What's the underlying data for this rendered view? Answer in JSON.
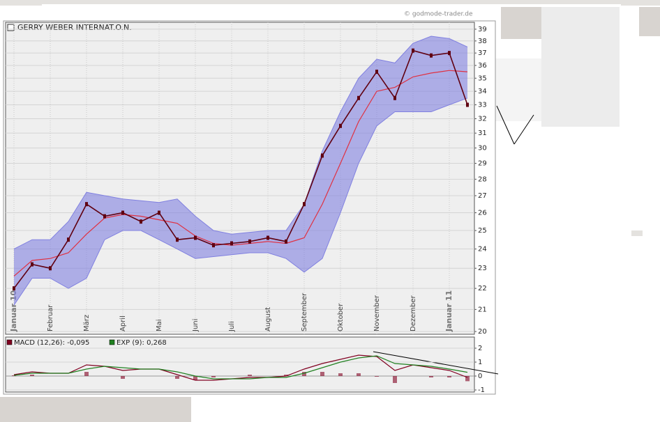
{
  "source": "© godmode-trader.de",
  "chart_data": [
    {
      "type": "line",
      "title": "GERRY WEBER INTERNAT.O.N.",
      "log": true,
      "grid": true,
      "categories": [
        "Januar 10",
        null,
        "Februar",
        null,
        "März",
        null,
        "April",
        null,
        "Mai",
        null,
        "Juni",
        null,
        "Juli",
        null,
        "August",
        null,
        "September",
        null,
        "Oktober",
        null,
        "November",
        null,
        "Dezember",
        null,
        "Januar 11",
        null
      ],
      "close": {
        "color": "#600010",
        "values": [
          22.0,
          23.2,
          23.0,
          24.5,
          26.5,
          25.8,
          26.0,
          25.5,
          26.0,
          24.5,
          24.6,
          24.2,
          24.3,
          24.4,
          24.6,
          24.4,
          26.5,
          29.5,
          31.5,
          33.5,
          35.5,
          33.5,
          37.2,
          36.8,
          37.0,
          33.0
        ]
      },
      "upper_band": {
        "color": "#8080e0",
        "values": [
          24.0,
          24.5,
          24.5,
          25.5,
          27.2,
          27.0,
          26.8,
          26.7,
          26.6,
          26.8,
          25.8,
          25.0,
          24.8,
          24.9,
          25.0,
          25.0,
          26.5,
          29.8,
          32.5,
          35.0,
          36.5,
          36.2,
          37.8,
          38.4,
          38.2,
          37.5
        ]
      },
      "lower_band": {
        "color": "#8080e0",
        "values": [
          21.2,
          22.5,
          22.5,
          22.0,
          22.5,
          24.5,
          25.0,
          25.0,
          24.5,
          24.0,
          23.5,
          23.6,
          23.7,
          23.8,
          23.8,
          23.5,
          22.8,
          23.5,
          26.0,
          29.0,
          31.5,
          32.5,
          32.5,
          32.5,
          33.0,
          33.5
        ]
      },
      "moving_average": {
        "color": "#e03040",
        "values": [
          22.6,
          23.4,
          23.5,
          23.8,
          24.8,
          25.7,
          25.9,
          25.8,
          25.6,
          25.4,
          24.7,
          24.3,
          24.2,
          24.3,
          24.4,
          24.3,
          24.6,
          26.5,
          29.0,
          31.8,
          34.0,
          34.3,
          35.1,
          35.4,
          35.6,
          35.5
        ]
      },
      "ylim": [
        19.88,
        39.6
      ],
      "yticks": [
        20,
        21,
        22,
        23,
        24,
        25,
        26,
        27,
        28,
        29,
        30,
        31,
        32,
        33,
        34,
        35,
        36,
        37,
        38,
        39
      ]
    },
    {
      "type": "line",
      "series": [
        {
          "name": "MACD (12,26): -0,095",
          "color": "#800020",
          "values": [
            0.1,
            0.3,
            0.2,
            0.2,
            0.8,
            0.7,
            0.4,
            0.5,
            0.5,
            0.1,
            -0.3,
            -0.3,
            -0.2,
            -0.1,
            -0.1,
            0.0,
            0.5,
            0.9,
            1.2,
            1.5,
            1.4,
            0.4,
            0.8,
            0.6,
            0.4,
            -0.1
          ]
        },
        {
          "name": "EXP (9): 0,268",
          "color": "#208020",
          "values": [
            0.05,
            0.2,
            0.2,
            0.2,
            0.5,
            0.7,
            0.6,
            0.5,
            0.5,
            0.3,
            0.0,
            -0.2,
            -0.2,
            -0.2,
            -0.1,
            -0.1,
            0.2,
            0.6,
            1.0,
            1.3,
            1.45,
            0.9,
            0.8,
            0.7,
            0.5,
            0.27
          ]
        }
      ],
      "histogram": {
        "color": "#800020",
        "values": [
          0.05,
          0.1,
          0.0,
          0.0,
          0.3,
          0.0,
          -0.2,
          0.0,
          0.0,
          -0.2,
          -0.3,
          -0.1,
          0.0,
          0.1,
          0.0,
          0.1,
          0.3,
          0.3,
          0.2,
          0.2,
          -0.05,
          -0.5,
          0.0,
          -0.1,
          -0.1,
          -0.37
        ]
      },
      "ylim": [
        -1.15,
        2.8
      ],
      "yticks": [
        -1,
        0,
        1,
        2
      ]
    }
  ]
}
